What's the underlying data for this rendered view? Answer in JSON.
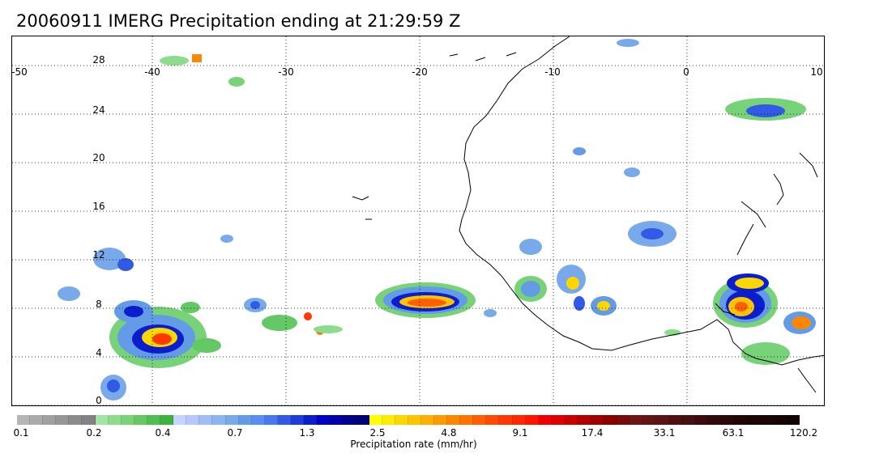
{
  "title": "20060911 IMERG Precipitation ending at 21:29:59 Z",
  "map": {
    "longitude_labels": [
      "-50",
      "-40",
      "-30",
      "-20",
      "-10",
      "0",
      "10"
    ],
    "latitude_labels": [
      "28",
      "24",
      "20",
      "16",
      "12",
      "8",
      "4",
      "0"
    ],
    "gridlines": "dotted",
    "coastlines": true
  },
  "colorbar": {
    "tick_labels": [
      "0.1",
      "0.2",
      "0.4",
      "0.7",
      "1.3",
      "2.5",
      "4.8",
      "9.1",
      "17.4",
      "33.1",
      "63.1",
      "120.2"
    ],
    "title": "Precipitation rate (mm/hr)",
    "colors": [
      "#b4b4b4",
      "#aaaaaa",
      "#a0a0a0",
      "#969696",
      "#8c8c8c",
      "#828282",
      "#a0e6a0",
      "#8cdc8c",
      "#78d278",
      "#64c864",
      "#50be50",
      "#3cb43c",
      "#c8d2ff",
      "#b4c8ff",
      "#a0bef5",
      "#8cb4f0",
      "#78aaeb",
      "#649be6",
      "#5a8cf5",
      "#4678f0",
      "#325ae6",
      "#1e3cdc",
      "#0a1ecd",
      "#0000c8",
      "#0000aa",
      "#00008c",
      "#000078",
      "#ffff00",
      "#ffeb00",
      "#ffd700",
      "#ffc300",
      "#ffaf00",
      "#ff9b00",
      "#ff8700",
      "#ff7300",
      "#ff5f00",
      "#ff4b00",
      "#ff3700",
      "#ff2800",
      "#ff1400",
      "#f00000",
      "#dc0000",
      "#c80000",
      "#b40000",
      "#a00000",
      "#8c0000",
      "#7a0a0a",
      "#6e1414",
      "#641414",
      "#5a1414",
      "#501010",
      "#461010",
      "#3c0c0c",
      "#320a0a",
      "#2a0808",
      "#220606",
      "#1e0505",
      "#1a0404",
      "#160303",
      "#120202"
    ]
  }
}
